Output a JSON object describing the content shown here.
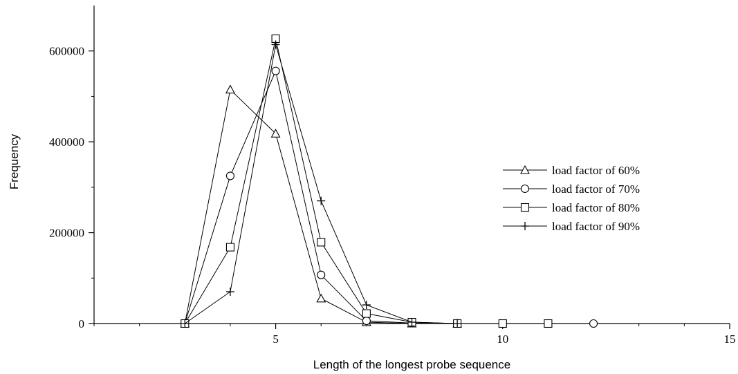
{
  "chart_data": {
    "type": "line",
    "xlabel": "Length of the longest probe sequence",
    "ylabel": "Frequency",
    "xlim": [
      1,
      15
    ],
    "ylim": [
      0,
      700000
    ],
    "x_ticks": [
      5,
      10,
      15
    ],
    "x_minor_ticks": [
      1,
      2,
      3,
      4,
      6,
      7,
      8,
      9,
      11,
      12,
      13,
      14
    ],
    "y_ticks": [
      0,
      200000,
      400000,
      600000
    ],
    "y_tick_labels": [
      "0",
      "200000",
      "400000",
      "600000"
    ],
    "legend_position": "right",
    "series": [
      {
        "name": "load factor of 60%",
        "marker": "triangle",
        "x": [
          3,
          4,
          5,
          6,
          7,
          8,
          9
        ],
        "y": [
          0,
          515000,
          418000,
          55000,
          3000,
          0,
          0
        ]
      },
      {
        "name": "load factor of 70%",
        "marker": "circle",
        "x": [
          3,
          4,
          5,
          6,
          7,
          8,
          9,
          10,
          11,
          12
        ],
        "y": [
          0,
          325000,
          556000,
          107000,
          6000,
          1000,
          0,
          0,
          0,
          0
        ]
      },
      {
        "name": "load factor of 80%",
        "marker": "square",
        "x": [
          3,
          4,
          5,
          6,
          7,
          8,
          9,
          10,
          11
        ],
        "y": [
          0,
          168000,
          627000,
          179000,
          22000,
          3000,
          0,
          0,
          0
        ]
      },
      {
        "name": "load factor of 90%",
        "marker": "plus",
        "x": [
          3,
          4,
          5,
          6,
          7,
          8,
          9
        ],
        "y": [
          0,
          70000,
          614000,
          270000,
          41000,
          3000,
          0
        ]
      }
    ]
  }
}
